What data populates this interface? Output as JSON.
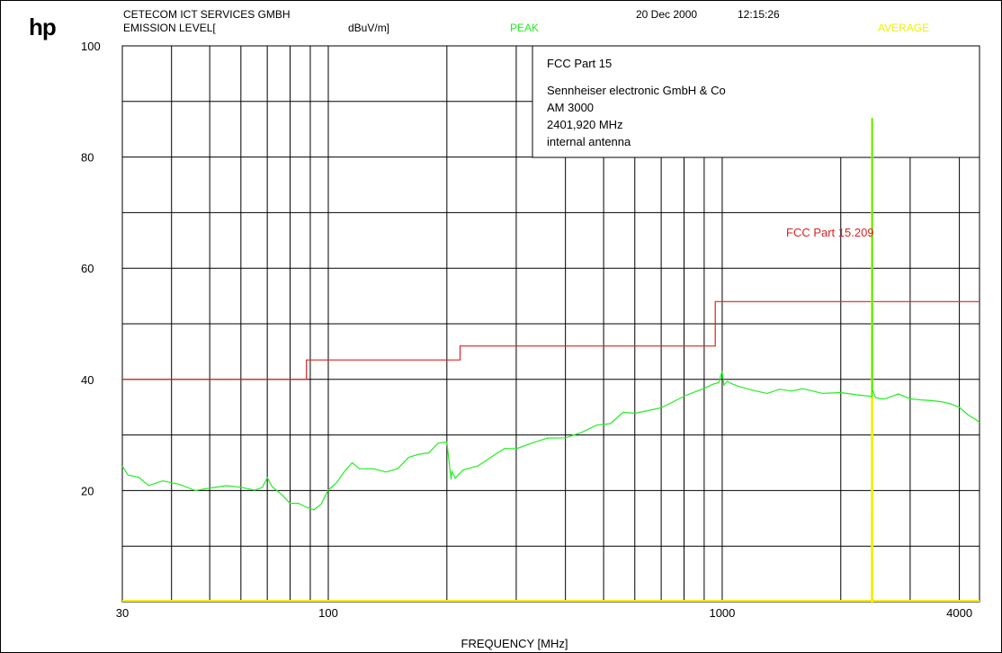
{
  "header": {
    "logo": "hp",
    "company": "CETECOM ICT SERVICES GMBH",
    "measurement": "EMISSION LEVEL[",
    "unit": "dBuV/m]",
    "date": "20 Dec 2000",
    "time": "12:15:26",
    "peak_label": "PEAK",
    "average_label": "AVERAGE"
  },
  "info_box": {
    "line1": "FCC Part 15",
    "line2": "Sennheiser electronic GmbH & Co",
    "line3": "AM 3000",
    "line4": "2401,920 MHz",
    "line5": "internal antenna"
  },
  "colors": {
    "peak": "#22ee22",
    "average": "#f0f000",
    "limit": "#dd2222",
    "grid": "#000000"
  },
  "chart_data": {
    "type": "line",
    "xscale": "log",
    "xlim": [
      30,
      4500
    ],
    "ylim": [
      0,
      100
    ],
    "xlabel": "FREQUENCY [MHz]",
    "ylabel": "",
    "x_ticks": [
      {
        "value": 30,
        "label": "30"
      },
      {
        "value": 100,
        "label": "100"
      },
      {
        "value": 1000,
        "label": "1000"
      },
      {
        "value": 4000,
        "label": "4000"
      }
    ],
    "y_ticks": [
      {
        "value": 100,
        "label": "100"
      },
      {
        "value": 80,
        "label": "80"
      },
      {
        "value": 60,
        "label": "60"
      },
      {
        "value": 40,
        "label": "40"
      },
      {
        "value": 20,
        "label": "20"
      }
    ],
    "grid": true,
    "limit_label": "FCC Part 15.209",
    "series": [
      {
        "name": "PEAK",
        "x": [
          30,
          31,
          33,
          35,
          38,
          42,
          46,
          50,
          55,
          60,
          65,
          68,
          70,
          72,
          76,
          80,
          84,
          88,
          92,
          96,
          100,
          105,
          110,
          115,
          120,
          130,
          140,
          150,
          160,
          170,
          180,
          190,
          200,
          205,
          206,
          210,
          220,
          240,
          260,
          280,
          300,
          330,
          360,
          400,
          440,
          480,
          520,
          560,
          600,
          650,
          700,
          750,
          800,
          850,
          900,
          950,
          980,
          1000,
          1010,
          1030,
          1050,
          1100,
          1200,
          1300,
          1400,
          1500,
          1600,
          1800,
          2000,
          2200,
          2400,
          2401.92,
          2404,
          2450,
          2550,
          2600,
          2800,
          3000,
          3200,
          3400,
          3600,
          3800,
          4000,
          4200,
          4400,
          4500
        ],
        "y": [
          25,
          22.8,
          22,
          21.5,
          21.2,
          21,
          20.6,
          20.2,
          20.3,
          20.1,
          20,
          20.8,
          22.5,
          20.2,
          19.2,
          18.3,
          17.5,
          16.5,
          17,
          17.8,
          19.5,
          21,
          23.5,
          25.5,
          24.5,
          23.5,
          23.2,
          24.5,
          25.5,
          26.5,
          27.3,
          28,
          28.8,
          22.5,
          23.2,
          22.8,
          23.5,
          25,
          26.3,
          27,
          27.3,
          28,
          29,
          29.7,
          30.5,
          31.5,
          32.5,
          33.5,
          34.5,
          35,
          35.5,
          36.5,
          37.5,
          38.2,
          38.8,
          39.5,
          40,
          41.5,
          39.5,
          40,
          38.8,
          38.2,
          37.5,
          37,
          37.8,
          37.5,
          38,
          37.5,
          38,
          37.8,
          37.5,
          87,
          38,
          37.2,
          37,
          37,
          38,
          37,
          36.5,
          36,
          35.5,
          35,
          34.5,
          33.5,
          33,
          32.5
        ]
      },
      {
        "name": "AVERAGE",
        "x": [
          2395,
          2399,
          2401.92,
          2404,
          2408
        ],
        "y": [
          0,
          0,
          87,
          0,
          0
        ]
      },
      {
        "name": "FCC Part 15.209",
        "x": [
          30,
          88,
          88,
          216,
          216,
          960,
          960,
          4500
        ],
        "y": [
          40,
          40,
          43.5,
          43.5,
          46,
          46,
          54,
          54
        ]
      }
    ]
  },
  "frequency_label": "FREQUENCY [MHz]"
}
